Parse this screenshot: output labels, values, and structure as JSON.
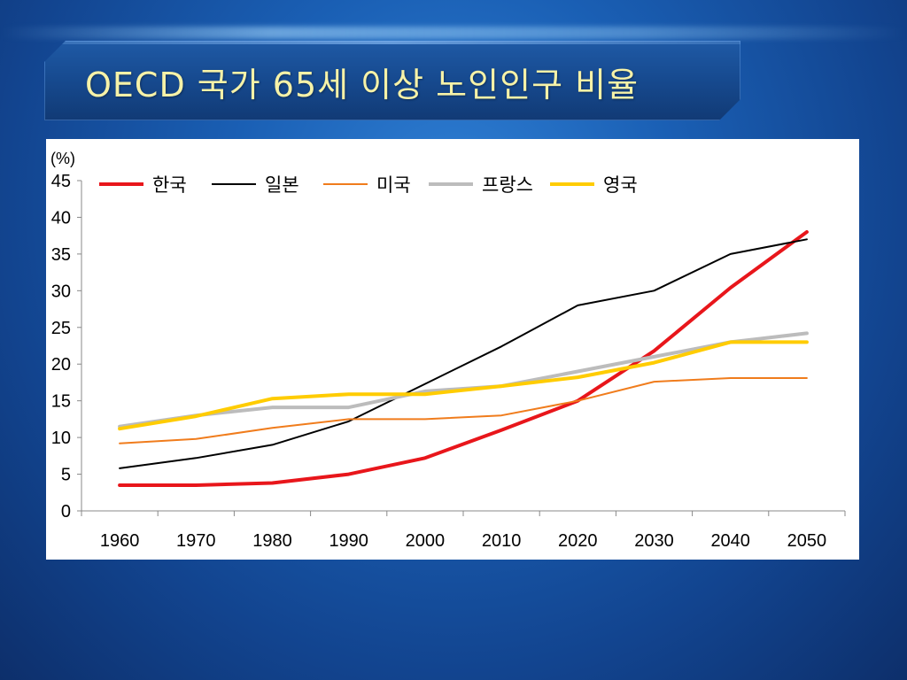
{
  "slide": {
    "title": "OECD 국가 65세 이상 노인인구 비율"
  },
  "chart_data": {
    "type": "line",
    "title": "",
    "ylabel": "(%)",
    "xlabel": "",
    "ylim": [
      0,
      45
    ],
    "yticks": [
      "0",
      "5",
      "10",
      "15",
      "20",
      "25",
      "30",
      "35",
      "40",
      "45"
    ],
    "categories": [
      "1960",
      "1970",
      "1980",
      "1990",
      "2000",
      "2010",
      "2020",
      "2030",
      "2040",
      "2050"
    ],
    "legend_position": "top",
    "series": [
      {
        "name": "한국",
        "color": "#e8161b",
        "width": 4,
        "values": [
          3.5,
          3.5,
          3.8,
          5.0,
          7.2,
          11.0,
          15.0,
          21.8,
          30.4,
          38.0
        ]
      },
      {
        "name": "일본",
        "color": "#000000",
        "width": 2,
        "values": [
          5.8,
          7.2,
          9.0,
          12.2,
          17.3,
          22.4,
          28.0,
          30.0,
          35.0,
          37.0
        ]
      },
      {
        "name": "미국",
        "color": "#f07c1c",
        "width": 2,
        "values": [
          9.2,
          9.8,
          11.3,
          12.5,
          12.5,
          13.0,
          15.0,
          17.6,
          18.1,
          18.1
        ]
      },
      {
        "name": "프랑스",
        "color": "#bcbcbc",
        "width": 4,
        "values": [
          11.5,
          13.0,
          14.1,
          14.1,
          16.3,
          17.0,
          19.0,
          21.0,
          23.0,
          24.2
        ]
      },
      {
        "name": "영국",
        "color": "#ffcc00",
        "width": 4,
        "values": [
          11.2,
          12.9,
          15.3,
          15.9,
          15.9,
          17.0,
          18.2,
          20.2,
          23.0,
          23.0
        ]
      }
    ]
  }
}
